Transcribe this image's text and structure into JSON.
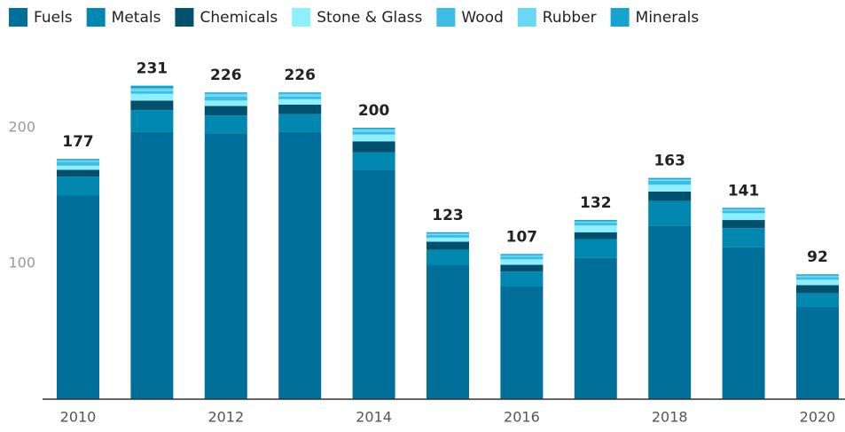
{
  "chart_data": {
    "type": "stacked_bar",
    "categories": [
      "2010",
      null,
      "2012",
      null,
      "2014",
      null,
      "2016",
      null,
      "2018",
      null,
      "2020"
    ],
    "series": [
      {
        "name": "Fuels",
        "color": "#00709a",
        "values": [
          150,
          197,
          196,
          197,
          169,
          99,
          83,
          104,
          128,
          112,
          68
        ]
      },
      {
        "name": "Metals",
        "color": "#0088b0",
        "values": [
          14,
          16,
          13,
          13,
          13,
          11,
          11,
          14,
          18,
          14,
          10
        ]
      },
      {
        "name": "Chemicals",
        "color": "#00506e",
        "values": [
          5,
          7,
          7,
          7,
          8,
          6,
          5,
          5,
          7,
          6,
          6
        ]
      },
      {
        "name": "Stone & Glass",
        "color": "#8ef0ff",
        "values": [
          3,
          5,
          4,
          4,
          5,
          3,
          4,
          5,
          5,
          5,
          4
        ]
      },
      {
        "name": "Wood",
        "color": "#3cbde6",
        "values": [
          3,
          2,
          3,
          2,
          2,
          2,
          2,
          2,
          3,
          2,
          2
        ]
      },
      {
        "name": "Rubber",
        "color": "#6ad8f5",
        "values": [
          1,
          2,
          2,
          2,
          2,
          1,
          1,
          1,
          1,
          1,
          1
        ]
      },
      {
        "name": "Minerals",
        "color": "#17a3cf",
        "values": [
          1,
          2,
          1,
          1,
          1,
          1,
          1,
          1,
          1,
          1,
          1
        ]
      }
    ],
    "total_labels": [
      177,
      231,
      226,
      226,
      200,
      123,
      107,
      132,
      163,
      141,
      92
    ],
    "ylim": [
      0,
      250
    ],
    "yticks": [
      100,
      200
    ],
    "grid": false,
    "legend": "top-left"
  }
}
